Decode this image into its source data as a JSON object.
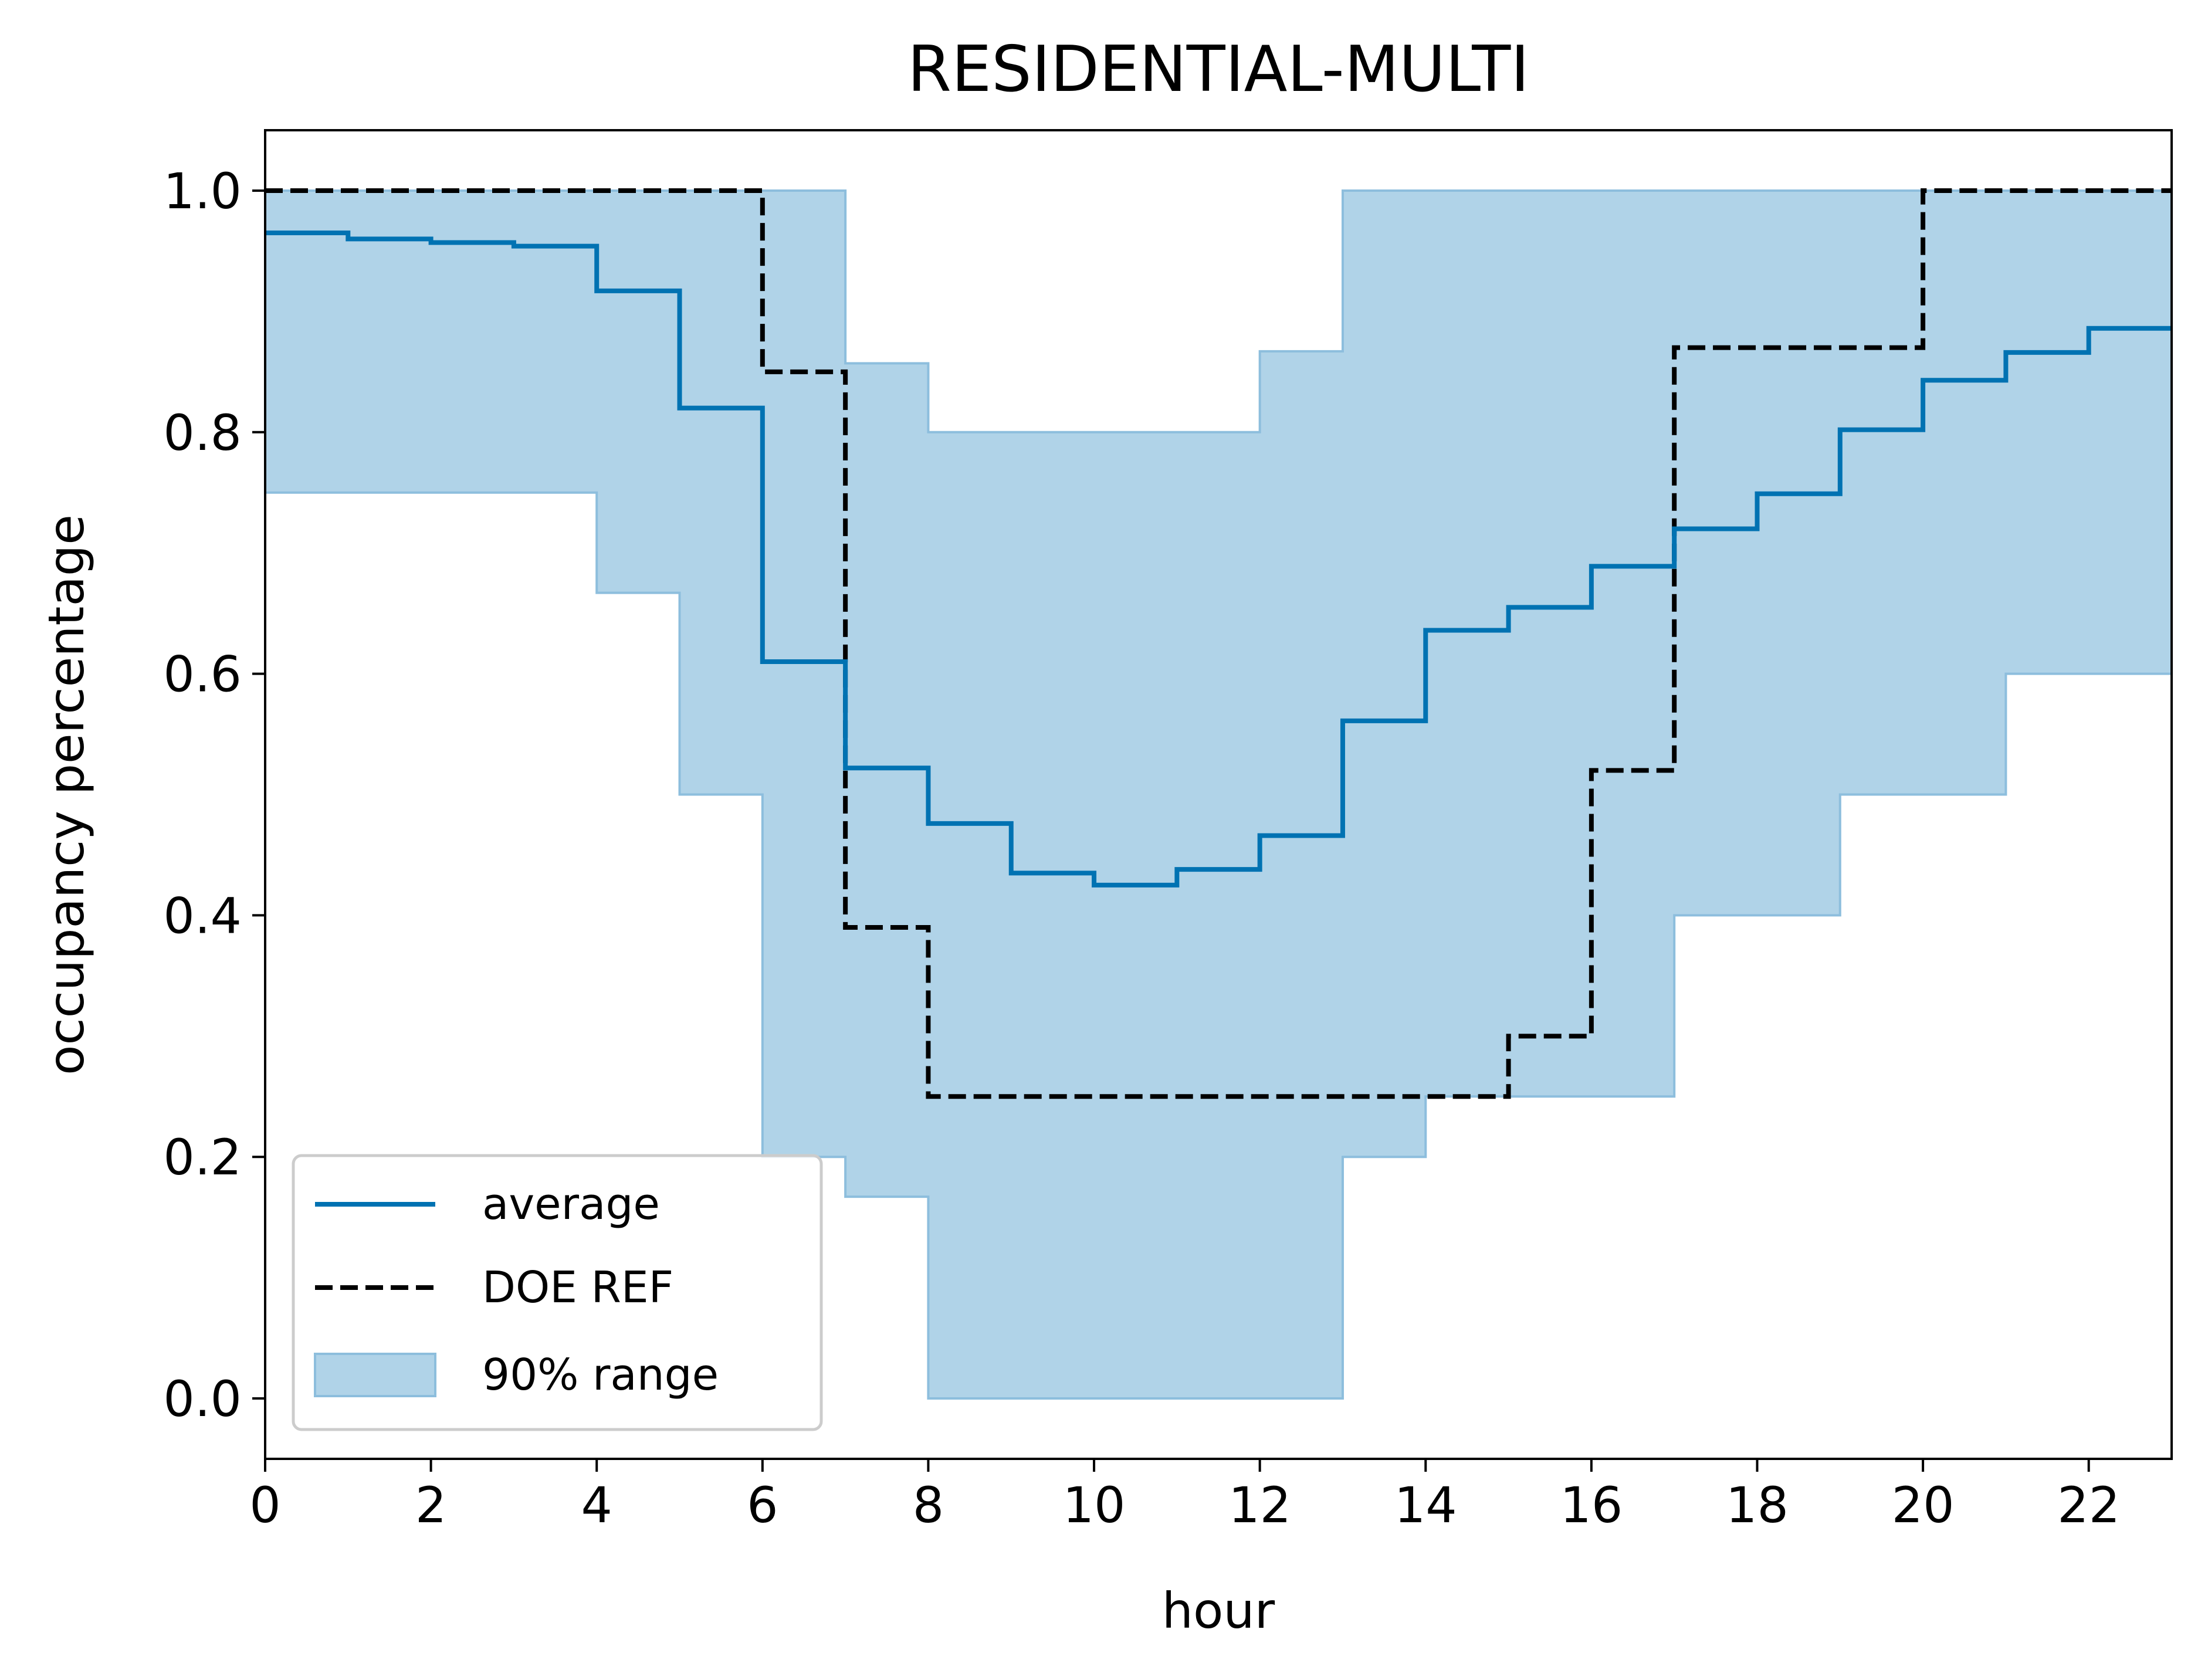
{
  "chart_data": {
    "type": "line",
    "title": "RESIDENTIAL-MULTI",
    "xlabel": "hour",
    "ylabel": "occupancy percentage",
    "xlim": [
      0,
      23
    ],
    "ylim": [
      -0.05,
      1.05
    ],
    "xticks": [
      0,
      2,
      4,
      6,
      8,
      10,
      12,
      14,
      16,
      18,
      20,
      22
    ],
    "xtick_labels": [
      "0",
      "2",
      "4",
      "6",
      "8",
      "10",
      "12",
      "14",
      "16",
      "18",
      "20",
      "22"
    ],
    "yticks": [
      0.0,
      0.2,
      0.4,
      0.6,
      0.8,
      1.0
    ],
    "ytick_labels": [
      "0.0",
      "0.2",
      "0.4",
      "0.6",
      "0.8",
      "1.0"
    ],
    "grid": false,
    "legend_position": "lower-left",
    "step": "post",
    "x": [
      0,
      1,
      2,
      3,
      4,
      5,
      6,
      7,
      8,
      9,
      10,
      11,
      12,
      13,
      14,
      15,
      16,
      17,
      18,
      19,
      20,
      21,
      22,
      23
    ],
    "series": [
      {
        "name": "average",
        "style": "solid",
        "color": "#0072b2",
        "values": [
          0.965,
          0.96,
          0.957,
          0.954,
          0.917,
          0.82,
          0.61,
          0.522,
          0.476,
          0.435,
          0.425,
          0.438,
          0.466,
          0.561,
          0.636,
          0.655,
          0.689,
          0.72,
          0.749,
          0.802,
          0.843,
          0.866,
          0.886,
          0.886
        ]
      },
      {
        "name": "DOE REF",
        "style": "dashed",
        "color": "#000000",
        "values": [
          1.0,
          1.0,
          1.0,
          1.0,
          1.0,
          1.0,
          0.85,
          0.39,
          0.25,
          0.25,
          0.25,
          0.25,
          0.25,
          0.25,
          0.25,
          0.3,
          0.52,
          0.87,
          0.87,
          0.87,
          1.0,
          1.0,
          1.0,
          1.0
        ]
      }
    ],
    "band": {
      "name": "90% range",
      "color": "#b0d3e8",
      "edge_color": "#8dbedd",
      "lower": [
        0.75,
        0.75,
        0.75,
        0.75,
        0.667,
        0.5,
        0.2,
        0.167,
        0.0,
        0.0,
        0.0,
        0.0,
        0.0,
        0.2,
        0.25,
        0.25,
        0.25,
        0.4,
        0.4,
        0.5,
        0.5,
        0.6,
        0.6,
        0.6
      ],
      "upper": [
        1.0,
        1.0,
        1.0,
        1.0,
        1.0,
        1.0,
        1.0,
        0.857,
        0.8,
        0.8,
        0.8,
        0.8,
        0.867,
        1.0,
        1.0,
        1.0,
        1.0,
        1.0,
        1.0,
        1.0,
        1.0,
        1.0,
        1.0,
        1.0
      ]
    }
  }
}
